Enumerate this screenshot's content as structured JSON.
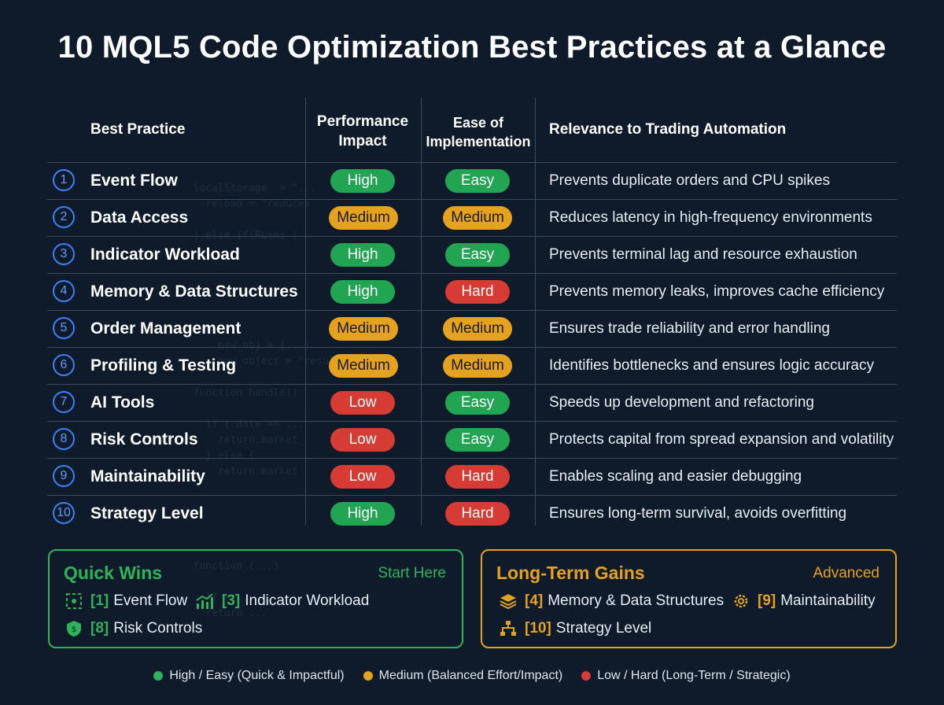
{
  "title": "10 MQL5 Code Optimization Best Practices at a Glance",
  "headers": {
    "practice": "Best Practice",
    "performance": "Performance Impact",
    "ease": "Ease of Implementation",
    "relevance": "Relevance to Trading Automation"
  },
  "rows": [
    {
      "num": "1",
      "name": "Event Flow",
      "perf": "High",
      "ease": "Easy",
      "rel": "Prevents duplicate orders and CPU spikes"
    },
    {
      "num": "2",
      "name": "Data Access",
      "perf": "Medium",
      "ease": "Medium",
      "rel": "Reduces latency in high-frequency environments"
    },
    {
      "num": "3",
      "name": "Indicator Workload",
      "perf": "High",
      "ease": "Easy",
      "rel": "Prevents terminal lag and resource exhaustion"
    },
    {
      "num": "4",
      "name": "Memory & Data Structures",
      "perf": "High",
      "ease": "Hard",
      "rel": "Prevents memory leaks, improves cache efficiency"
    },
    {
      "num": "5",
      "name": "Order Management",
      "perf": "Medium",
      "ease": "Medium",
      "rel": "Ensures trade reliability and error handling"
    },
    {
      "num": "6",
      "name": "Profiling & Testing",
      "perf": "Medium",
      "ease": "Medium",
      "rel": "Identifies bottlenecks and ensures logic accuracy"
    },
    {
      "num": "7",
      "name": "AI Tools",
      "perf": "Low",
      "ease": "Easy",
      "rel": "Speeds up development and refactoring"
    },
    {
      "num": "8",
      "name": "Risk Controls",
      "perf": "Low",
      "ease": "Easy",
      "rel": "Protects capital from spread expansion and volatility"
    },
    {
      "num": "9",
      "name": "Maintainability",
      "perf": "Low",
      "ease": "Hard",
      "rel": "Enables scaling and easier debugging"
    },
    {
      "num": "10",
      "name": "Strategy Level",
      "perf": "High",
      "ease": "Hard",
      "rel": "Ensures long-term survival, avoids overfitting"
    }
  ],
  "quick_wins": {
    "title": "Quick Wins",
    "tag": "Start Here",
    "items": [
      {
        "ref": "[1]",
        "label": "Event Flow",
        "icon": "event-flow-icon"
      },
      {
        "ref": "[3]",
        "label": "Indicator Workload",
        "icon": "bar-chart-icon"
      },
      {
        "ref": "[8]",
        "label": "Risk Controls",
        "icon": "shield-icon"
      }
    ]
  },
  "long_term": {
    "title": "Long-Term Gains",
    "tag": "Advanced",
    "items": [
      {
        "ref": "[4]",
        "label": "Memory & Data Structures",
        "icon": "layers-icon"
      },
      {
        "ref": "[9]",
        "label": "Maintainability",
        "icon": "gear-icon"
      },
      {
        "ref": "[10]",
        "label": "Strategy Level",
        "icon": "hierarchy-icon"
      }
    ]
  },
  "legend": [
    {
      "label": "High / Easy (Quick & Impactful)",
      "color": "#2fb35a"
    },
    {
      "label": "Medium (Balanced Effort/Impact)",
      "color": "#e5a21e"
    },
    {
      "label": "Low / Hard (Long-Term / Strategic)",
      "color": "#d63c33"
    }
  ],
  "colors": {
    "green": "#2fb35a",
    "orange": "#e5a21e",
    "red": "#d63c33",
    "blue": "#3b82f6",
    "background": "#0f1b2a"
  }
}
